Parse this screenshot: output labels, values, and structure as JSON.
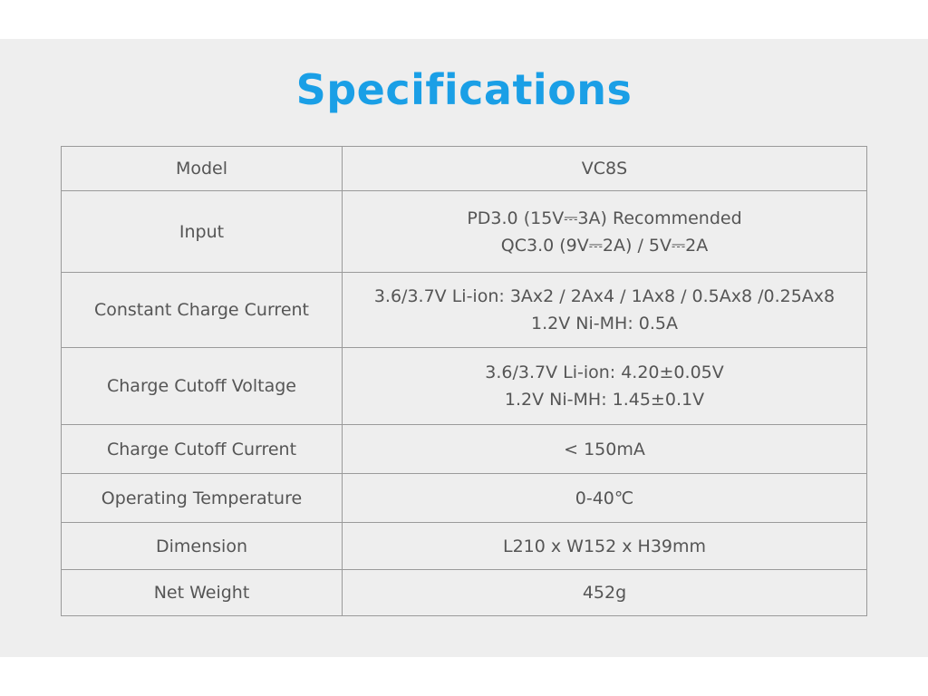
{
  "title": "Specifications",
  "rows": [
    {
      "label": "Model",
      "values": [
        "VC8S"
      ]
    },
    {
      "label": "Input",
      "values": [
        "PD3.0 (15V⎓3A) Recommended",
        "QC3.0 (9V⎓2A) / 5V⎓2A"
      ]
    },
    {
      "label": "Constant Charge Current",
      "values": [
        "3.6/3.7V Li-ion: 3Ax2 / 2Ax4 / 1Ax8 / 0.5Ax8 /0.25Ax8",
        "1.2V Ni-MH: 0.5A"
      ]
    },
    {
      "label": "Charge Cutoff Voltage",
      "values": [
        "3.6/3.7V Li-ion: 4.20±0.05V",
        "1.2V Ni-MH: 1.45±0.1V"
      ]
    },
    {
      "label": "Charge Cutoff Current",
      "values": [
        "< 150mA"
      ]
    },
    {
      "label": "Operating Temperature",
      "values": [
        "0-40℃"
      ]
    },
    {
      "label": "Dimension",
      "values": [
        "L210 x W152 x H39mm"
      ]
    },
    {
      "label": "Net Weight",
      "values": [
        "452g"
      ]
    }
  ]
}
